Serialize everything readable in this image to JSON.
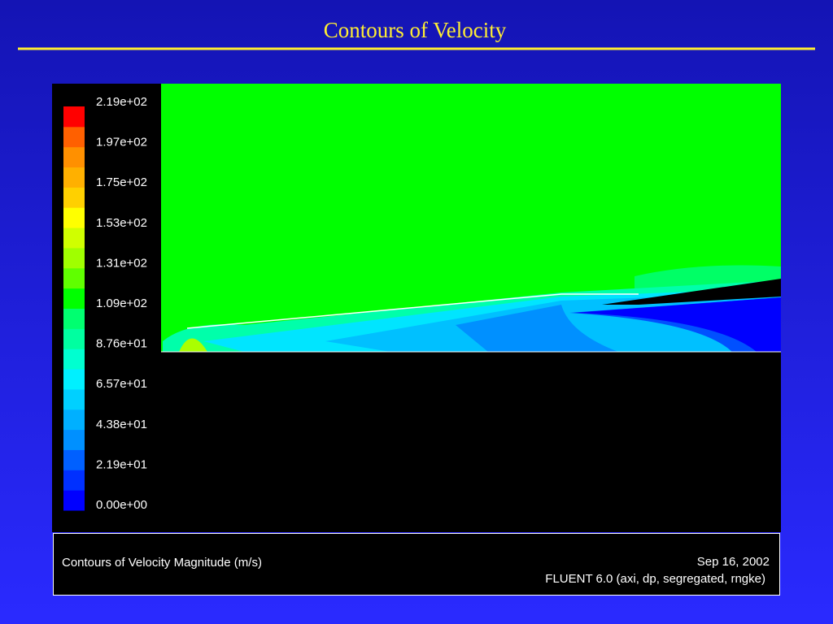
{
  "title": "Contours of Velocity",
  "colorbar": {
    "labels": [
      "2.19e+02",
      "1.97e+02",
      "1.75e+02",
      "1.53e+02",
      "1.31e+02",
      "1.09e+02",
      "8.76e+01",
      "6.57e+01",
      "4.38e+01",
      "2.19e+01",
      "0.00e+00"
    ]
  },
  "footer": {
    "left": "Contours of Velocity Magnitude (m/s)",
    "date": "Sep 16, 2002",
    "solver": "FLUENT 6.0 (axi, dp, segregated, rngke)"
  }
}
